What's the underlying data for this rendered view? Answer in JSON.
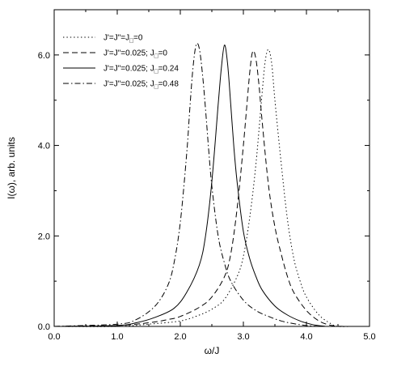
{
  "chart_data": {
    "type": "line",
    "xlabel": "ω/J",
    "ylabel": "I(ω), arb. units",
    "xlim": [
      0.0,
      5.0
    ],
    "ylim": [
      0.0,
      7.0
    ],
    "xticks": [
      "0.0",
      "1.0",
      "2.0",
      "3.0",
      "4.0",
      "5.0"
    ],
    "yticks": [
      "0.0",
      "2.0",
      "4.0",
      "6.0"
    ],
    "grid": false,
    "legend_position": "top-left",
    "series": [
      {
        "name": "J'=J\"=J",
        "name_sub": "□",
        "name_tail": "=0",
        "dash": "dotted",
        "x": [
          0.0,
          1.0,
          1.5,
          2.0,
          2.3,
          2.5,
          2.7,
          2.9,
          3.0,
          3.1,
          3.2,
          3.3,
          3.35,
          3.4,
          3.45,
          3.5,
          3.6,
          3.7,
          3.8,
          3.9,
          4.0,
          4.2,
          4.4,
          4.5,
          4.7
        ],
        "y": [
          0.0,
          0.0,
          0.05,
          0.12,
          0.25,
          0.38,
          0.6,
          1.1,
          1.55,
          2.4,
          3.6,
          5.2,
          5.9,
          6.12,
          5.8,
          5.0,
          3.6,
          2.35,
          1.5,
          1.0,
          0.65,
          0.25,
          0.05,
          0.0,
          0.0
        ]
      },
      {
        "name": "J'=J\"=0.025; J",
        "name_sub": "□",
        "name_tail": "=0",
        "dash": "dashed",
        "x": [
          0.0,
          1.0,
          1.5,
          1.8,
          2.0,
          2.3,
          2.5,
          2.7,
          2.8,
          2.9,
          3.0,
          3.1,
          3.15,
          3.2,
          3.25,
          3.3,
          3.4,
          3.5,
          3.6,
          3.7,
          3.8,
          4.0,
          4.2,
          4.4,
          4.6
        ],
        "y": [
          0.0,
          0.02,
          0.08,
          0.15,
          0.22,
          0.42,
          0.65,
          1.1,
          1.6,
          2.6,
          4.0,
          5.6,
          6.08,
          5.9,
          5.3,
          4.5,
          3.1,
          2.2,
          1.6,
          1.1,
          0.75,
          0.35,
          0.12,
          0.02,
          0.0
        ]
      },
      {
        "name": "J'=J\"=0.025; J",
        "name_sub": "□",
        "name_tail": "=0.24",
        "dash": "solid",
        "x": [
          0.0,
          1.0,
          1.3,
          1.6,
          1.9,
          2.1,
          2.3,
          2.4,
          2.5,
          2.6,
          2.65,
          2.7,
          2.75,
          2.8,
          2.85,
          2.9,
          3.0,
          3.1,
          3.2,
          3.3,
          3.5,
          3.7,
          3.9,
          4.1,
          4.3
        ],
        "y": [
          0.0,
          0.02,
          0.08,
          0.2,
          0.4,
          0.75,
          1.35,
          2.0,
          3.2,
          4.9,
          5.7,
          6.22,
          5.8,
          4.9,
          3.95,
          3.2,
          2.1,
          1.5,
          1.1,
          0.8,
          0.45,
          0.25,
          0.12,
          0.04,
          0.0
        ]
      },
      {
        "name": "J'=J\"=0.025; J",
        "name_sub": "□",
        "name_tail": "=0.48",
        "dash": "dashdot",
        "x": [
          0.0,
          1.0,
          1.3,
          1.6,
          1.8,
          1.9,
          2.0,
          2.1,
          2.15,
          2.2,
          2.25,
          2.3,
          2.35,
          2.4,
          2.45,
          2.5,
          2.6,
          2.7,
          2.8,
          3.0,
          3.2,
          3.4,
          3.6,
          3.8,
          4.0,
          4.2
        ],
        "y": [
          0.0,
          0.05,
          0.15,
          0.45,
          0.9,
          1.4,
          2.3,
          3.8,
          4.8,
          5.7,
          6.22,
          6.15,
          5.6,
          4.8,
          3.9,
          3.1,
          2.0,
          1.4,
          1.0,
          0.58,
          0.35,
          0.22,
          0.12,
          0.06,
          0.02,
          0.0
        ]
      }
    ]
  }
}
